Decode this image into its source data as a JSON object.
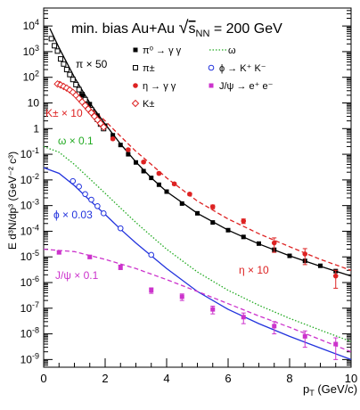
{
  "chart_data": {
    "type": "scatter",
    "title": "min. bias Au+Au √s_NN = 200 GeV",
    "title_parts": {
      "prefix": "min. bias Au+Au ",
      "sqrt_s": "s",
      "sub": "NN",
      "suffix": " = 200 GeV"
    },
    "xlabel": {
      "main": "p",
      "sub": "T",
      "rest": " (GeV/c)"
    },
    "ylabel": "E d³N/dp³ (GeV⁻² c³)",
    "xlim": [
      0,
      10
    ],
    "ylim_log10": [
      -9.3,
      4.7
    ],
    "log_y": true,
    "grid": false,
    "legend_position": "top-right",
    "x_tick_labels": [
      "0",
      "2",
      "4",
      "6",
      "8",
      "10"
    ],
    "y_tick_labels": [
      {
        "base": "10",
        "exp": "4",
        "decade": 4
      },
      {
        "base": "10",
        "exp": "3",
        "decade": 3
      },
      {
        "base": "10",
        "exp": "2",
        "decade": 2
      },
      {
        "base": "10",
        "exp": "",
        "decade": 1
      },
      {
        "base": "1",
        "exp": "",
        "decade": 0
      },
      {
        "base": "10",
        "exp": "-1",
        "decade": -1
      },
      {
        "base": "10",
        "exp": "-2",
        "decade": -2
      },
      {
        "base": "10",
        "exp": "-3",
        "decade": -3
      },
      {
        "base": "10",
        "exp": "-4",
        "decade": -4
      },
      {
        "base": "10",
        "exp": "-5",
        "decade": -5
      },
      {
        "base": "10",
        "exp": "-6",
        "decade": -6
      },
      {
        "base": "10",
        "exp": "-7",
        "decade": -7
      },
      {
        "base": "10",
        "exp": "-8",
        "decade": -8
      },
      {
        "base": "10",
        "exp": "-9",
        "decade": -9
      }
    ],
    "legend": [
      {
        "label": "π⁰ → γ γ",
        "marker": "square-filled",
        "color": "#000000"
      },
      {
        "label": "ω",
        "marker": "dotted-line",
        "color": "#22aa22"
      },
      {
        "label": "π±",
        "marker": "square-open",
        "color": "#000000"
      },
      {
        "label": "ϕ → K⁺ K⁻",
        "marker": "circle-open",
        "color": "#2233dd"
      },
      {
        "label": "η → γ γ",
        "marker": "circle-filled",
        "color": "#dd2222"
      },
      {
        "label": "J/ψ → e⁺ e⁻",
        "marker": "square-filled",
        "color": "#cc33cc"
      },
      {
        "label": "K±",
        "marker": "diamond-open",
        "color": "#dd2222"
      }
    ],
    "annotations": [
      {
        "text": "π × 50",
        "color": "#000000"
      },
      {
        "text": "K± × 10",
        "color": "#dd2222"
      },
      {
        "text": "ω × 0.1",
        "color": "#22aa22"
      },
      {
        "text": "ϕ × 0.03",
        "color": "#2233dd"
      },
      {
        "text": "J/ψ × 0.1",
        "color": "#cc33cc"
      },
      {
        "text": "η × 10",
        "color": "#dd2222"
      }
    ],
    "curves": [
      {
        "name": "π⁰ fit",
        "color": "#000000",
        "style": "solid",
        "x": [
          0.2,
          0.5,
          1.0,
          1.5,
          2.0,
          2.5,
          3.0,
          3.5,
          4.0,
          5.0,
          6.0,
          7.0,
          8.0,
          9.0,
          10.0
        ],
        "y": [
          8000,
          1400,
          100,
          10,
          1.5,
          0.25,
          0.05,
          0.012,
          0.0035,
          0.0005,
          0.00011,
          3.2e-05,
          1.1e-05,
          4.3e-06,
          1.8e-06
        ]
      },
      {
        "name": "η fit",
        "color": "#dd2222",
        "style": "dashed",
        "x": [
          0.5,
          1.0,
          1.5,
          2.0,
          2.5,
          3.0,
          3.5,
          4.0,
          5.0,
          6.0,
          7.0,
          8.0,
          9.0,
          10.0
        ],
        "y": [
          70,
          25,
          7,
          2,
          0.5,
          0.13,
          0.04,
          0.012,
          0.0015,
          0.0003,
          8e-05,
          2.5e-05,
          8e-06,
          3e-06
        ]
      },
      {
        "name": "ω",
        "color": "#22aa22",
        "style": "dotted",
        "x": [
          0.0,
          0.5,
          1.0,
          1.5,
          2.0,
          2.5,
          3.0,
          3.5,
          4.0,
          5.0,
          6.0,
          7.0,
          8.0,
          9.0,
          10.0
        ],
        "y": [
          0.2,
          0.12,
          0.04,
          0.011,
          0.003,
          0.0008,
          0.00022,
          6.5e-05,
          2e-05,
          2.6e-06,
          5e-07,
          1.3e-07,
          4e-08,
          1.4e-08,
          5e-09
        ]
      },
      {
        "name": "ϕ",
        "color": "#2233dd",
        "style": "solid",
        "x": [
          0.0,
          0.5,
          1.0,
          1.5,
          2.0,
          2.5,
          3.0,
          3.5,
          4.0,
          5.0,
          6.0,
          7.0,
          8.0,
          9.0,
          10.0
        ],
        "y": [
          0.03,
          0.018,
          0.006,
          0.0016,
          0.00045,
          0.00012,
          3.5e-05,
          1.1e-05,
          3.5e-06,
          4.5e-07,
          9e-08,
          2.5e-08,
          8e-09,
          2.8e-09,
          1e-09
        ]
      },
      {
        "name": "J/ψ",
        "color": "#cc33cc",
        "style": "dashed",
        "x": [
          0.0,
          1.0,
          2.0,
          3.0,
          4.0,
          5.0,
          6.0,
          7.0,
          8.0,
          9.0,
          10.0
        ],
        "y": [
          2e-05,
          1.6e-05,
          8e-06,
          3.5e-06,
          1.3e-06,
          4.5e-07,
          1.5e-07,
          5e-08,
          1.8e-08,
          6e-09,
          2e-09
        ]
      }
    ],
    "series": [
      {
        "name": "π±",
        "marker": "square-open",
        "color": "#000000",
        "err": false,
        "x": [
          0.25,
          0.35,
          0.45,
          0.55,
          0.65,
          0.75,
          0.85,
          0.95,
          1.05,
          1.15,
          1.25,
          1.35,
          1.45,
          1.55,
          1.65,
          1.75,
          1.85,
          1.95
        ],
        "y": [
          3200,
          1700,
          1050,
          520,
          330,
          200,
          128,
          82,
          52,
          33,
          21,
          13.5,
          8.5,
          5.5,
          3.5,
          2.3,
          1.5,
          1.0
        ]
      },
      {
        "name": "π⁰",
        "marker": "square-filled",
        "color": "#000000",
        "err": false,
        "x": [
          1.25,
          1.5,
          1.75,
          2.0,
          2.25,
          2.5,
          2.75,
          3.0,
          3.25,
          3.5,
          3.75,
          4.0,
          4.5,
          5.0,
          5.5,
          6.0,
          6.5,
          7.0,
          7.5,
          8.0,
          8.5,
          9.0,
          9.5
        ],
        "y": [
          20,
          9,
          3.2,
          1.3,
          0.55,
          0.23,
          0.1,
          0.048,
          0.022,
          0.012,
          0.0065,
          0.0035,
          0.0012,
          0.0005,
          0.00022,
          0.00011,
          6e-05,
          3.3e-05,
          1.9e-05,
          1.1e-05,
          7e-06,
          4.5e-06,
          2.8e-06
        ]
      },
      {
        "name": "K±",
        "marker": "diamond-open",
        "color": "#dd2222",
        "err": false,
        "x": [
          0.45,
          0.55,
          0.65,
          0.75,
          0.85,
          0.95,
          1.05,
          1.15,
          1.25,
          1.35,
          1.45,
          1.55,
          1.65,
          1.75,
          1.85,
          1.95
        ],
        "y": [
          55,
          50,
          44,
          38,
          32,
          26,
          20,
          15,
          11,
          8,
          5.8,
          4.2,
          3.0,
          2.2,
          1.6,
          1.15
        ]
      },
      {
        "name": "η",
        "marker": "circle-filled",
        "color": "#dd2222",
        "err": true,
        "x": [
          2.25,
          2.75,
          3.25,
          3.75,
          4.25,
          4.75,
          5.5,
          6.5,
          7.5,
          8.5,
          9.5
        ],
        "y": [
          0.4,
          0.15,
          0.05,
          0.018,
          0.007,
          0.0028,
          0.0009,
          0.00025,
          3.5e-05,
          1.3e-05,
          1.8e-06
        ],
        "y_err": [
          0.04,
          0.015,
          0.005,
          0.002,
          0.0008,
          0.0003,
          0.00015,
          5e-05,
          2e-05,
          8e-06,
          1.2e-06
        ]
      },
      {
        "name": "ϕ",
        "marker": "circle-open",
        "color": "#2233dd",
        "err": false,
        "x": [
          0.95,
          1.15,
          1.35,
          1.55,
          1.75,
          1.95,
          2.5,
          3.5
        ],
        "y": [
          0.009,
          0.0055,
          0.0028,
          0.0017,
          0.00095,
          0.0005,
          0.00013,
          1.2e-05
        ]
      },
      {
        "name": "J/ψ",
        "marker": "square-filled",
        "color": "#cc33cc",
        "err": true,
        "x": [
          0.5,
          1.5,
          2.5,
          3.5,
          4.5,
          5.5,
          6.5,
          7.5,
          8.5,
          9.5
        ],
        "y": [
          1.5e-05,
          1e-05,
          4e-06,
          5e-07,
          2.8e-07,
          9e-08,
          4.5e-08,
          2e-08,
          8e-09,
          4e-09
        ],
        "y_err": [
          2e-06,
          1.5e-06,
          8e-07,
          1.2e-07,
          8e-08,
          3e-08,
          2e-08,
          1e-08,
          5e-09,
          3e-09
        ]
      }
    ]
  }
}
